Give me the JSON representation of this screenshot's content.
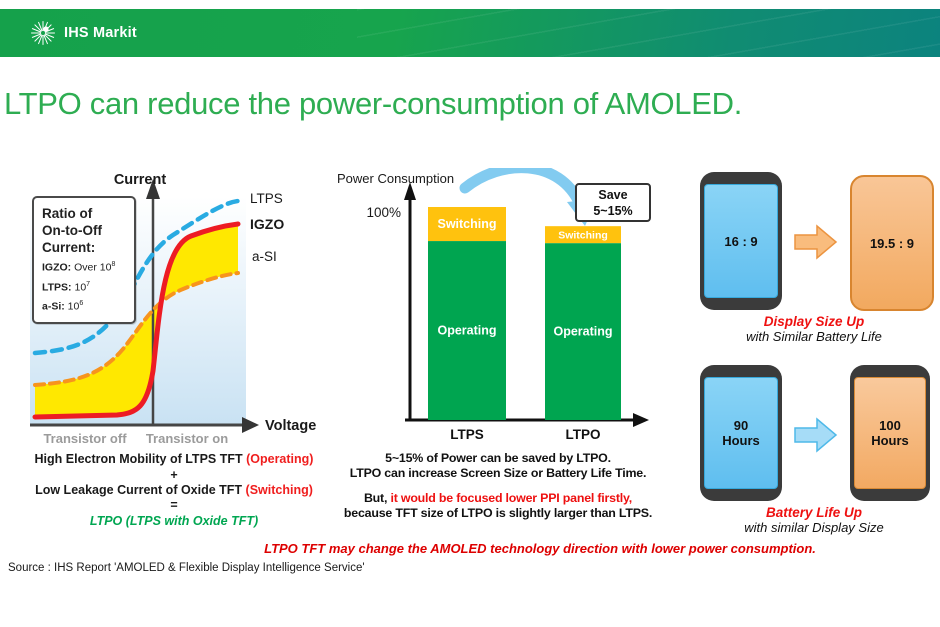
{
  "header": {
    "brand": "IHS Markit"
  },
  "title": "LTPO can reduce the power-consumption of AMOLED.",
  "left_chart": {
    "y_axis_label": "Current",
    "x_axis_label": "Voltage",
    "x_zone_left": "Transistor off",
    "x_zone_right": "Transistor on",
    "legend": {
      "ltps": "LTPS",
      "igzo": "IGZO",
      "asi": "a-SI"
    },
    "ratio_box": {
      "heading_line1": "Ratio of",
      "heading_line2": "On-to-Off",
      "heading_line3": "Current:",
      "items": [
        {
          "name": "IGZO:",
          "value": " Over 10",
          "exp": "8"
        },
        {
          "name": "LTPS:",
          "value": " 10",
          "exp": "7"
        },
        {
          "name": "a-Si:",
          "value": " 10",
          "exp": "6"
        }
      ]
    },
    "formula": {
      "line1": "High Electron Mobility of LTPS TFT ",
      "line1_suffix": "(Operating)",
      "plus": "+",
      "line2": "Low Leakage Current of Oxide TFT ",
      "line2_suffix": "(Switching)",
      "equals": "=",
      "result": "LTPO (LTPS with Oxide TFT)"
    }
  },
  "middle_chart": {
    "axis_label": "Power Consumption",
    "y_max_label": "100%",
    "save_line1": "Save",
    "save_line2": "5~15%",
    "bars": [
      {
        "label": "LTPS",
        "switching": "Switching",
        "operating": "Operating"
      },
      {
        "label": "LTPO",
        "switching": "Switching",
        "operating": "Operating"
      }
    ],
    "notes": {
      "line1": "5~15% of Power can be saved by LTPO.",
      "line2": "LTPO can increase Screen Size or Battery Life Time.",
      "line3_prefix": "But, ",
      "line3_red": "it would be focused lower PPI panel firstly,",
      "line4": "because TFT size of LTPO is slightly larger than LTPS."
    }
  },
  "right_panel": {
    "row1": {
      "left_phone": "16 : 9",
      "right_phone": "19.5 : 9",
      "caption_highlight": "Display Size Up",
      "caption_rest": "with Similar Battery Life"
    },
    "row2": {
      "left_phone": "90 Hours",
      "right_phone": "100 Hours",
      "caption_highlight": "Battery Life Up",
      "caption_rest": "with similar Display Size"
    }
  },
  "footer": {
    "takeaway": "LTPO TFT may change the AMOLED technology direction with lower power consumption.",
    "source": "Source : IHS Report 'AMOLED & Flexible Display Intelligence Service'"
  },
  "colors": {
    "brand_green": "#17A44D",
    "brand_teal": "#0C837E",
    "title_green": "#2EAD52",
    "bar_green": "#00A550",
    "bar_orange": "#FFC20E",
    "ltps_blue": "#29ABE2",
    "igzo_red": "#ED1C24",
    "asi_orange": "#F7941D",
    "accent_red": "#EE1111",
    "phone_blue": "#70C8F3",
    "phone_orange": "#F5B26E"
  },
  "chart_data": [
    {
      "type": "line",
      "title": "TFT transfer characteristic (Current vs Voltage)",
      "xlabel": "Voltage",
      "ylabel": "Current",
      "x_zones": [
        "Transistor off",
        "Transistor on"
      ],
      "series": [
        {
          "name": "LTPS",
          "style": "dashed",
          "color": "#29ABE2",
          "note": "highest on-current S-curve"
        },
        {
          "name": "IGZO",
          "style": "solid",
          "color": "#ED1C24",
          "note": "steep switching near threshold, lowest off-state leakage"
        },
        {
          "name": "a-SI",
          "style": "dashed",
          "color": "#F7941D",
          "note": "lowest on-current S-curve"
        }
      ],
      "annotations": [
        "Ratio of On-to-Off Current:",
        "IGZO: Over 10^8",
        "LTPS: 10^7",
        "a-Si: 10^6"
      ],
      "fill_between": {
        "series": [
          "IGZO",
          "a-SI"
        ],
        "color": "#FFE800"
      }
    },
    {
      "type": "bar",
      "stacked": true,
      "categories": [
        "LTPS",
        "LTPO"
      ],
      "series": [
        {
          "name": "Operating",
          "color": "#00A550",
          "values": [
            84,
            83
          ]
        },
        {
          "name": "Switching",
          "color": "#FFC20E",
          "values": [
            16,
            8
          ]
        }
      ],
      "ylabel": "Power Consumption",
      "ylim": [
        0,
        100
      ],
      "y_tick_labels": [
        "100%"
      ],
      "annotations": [
        "Save 5~15%"
      ],
      "legend_position": "in-bar"
    }
  ]
}
